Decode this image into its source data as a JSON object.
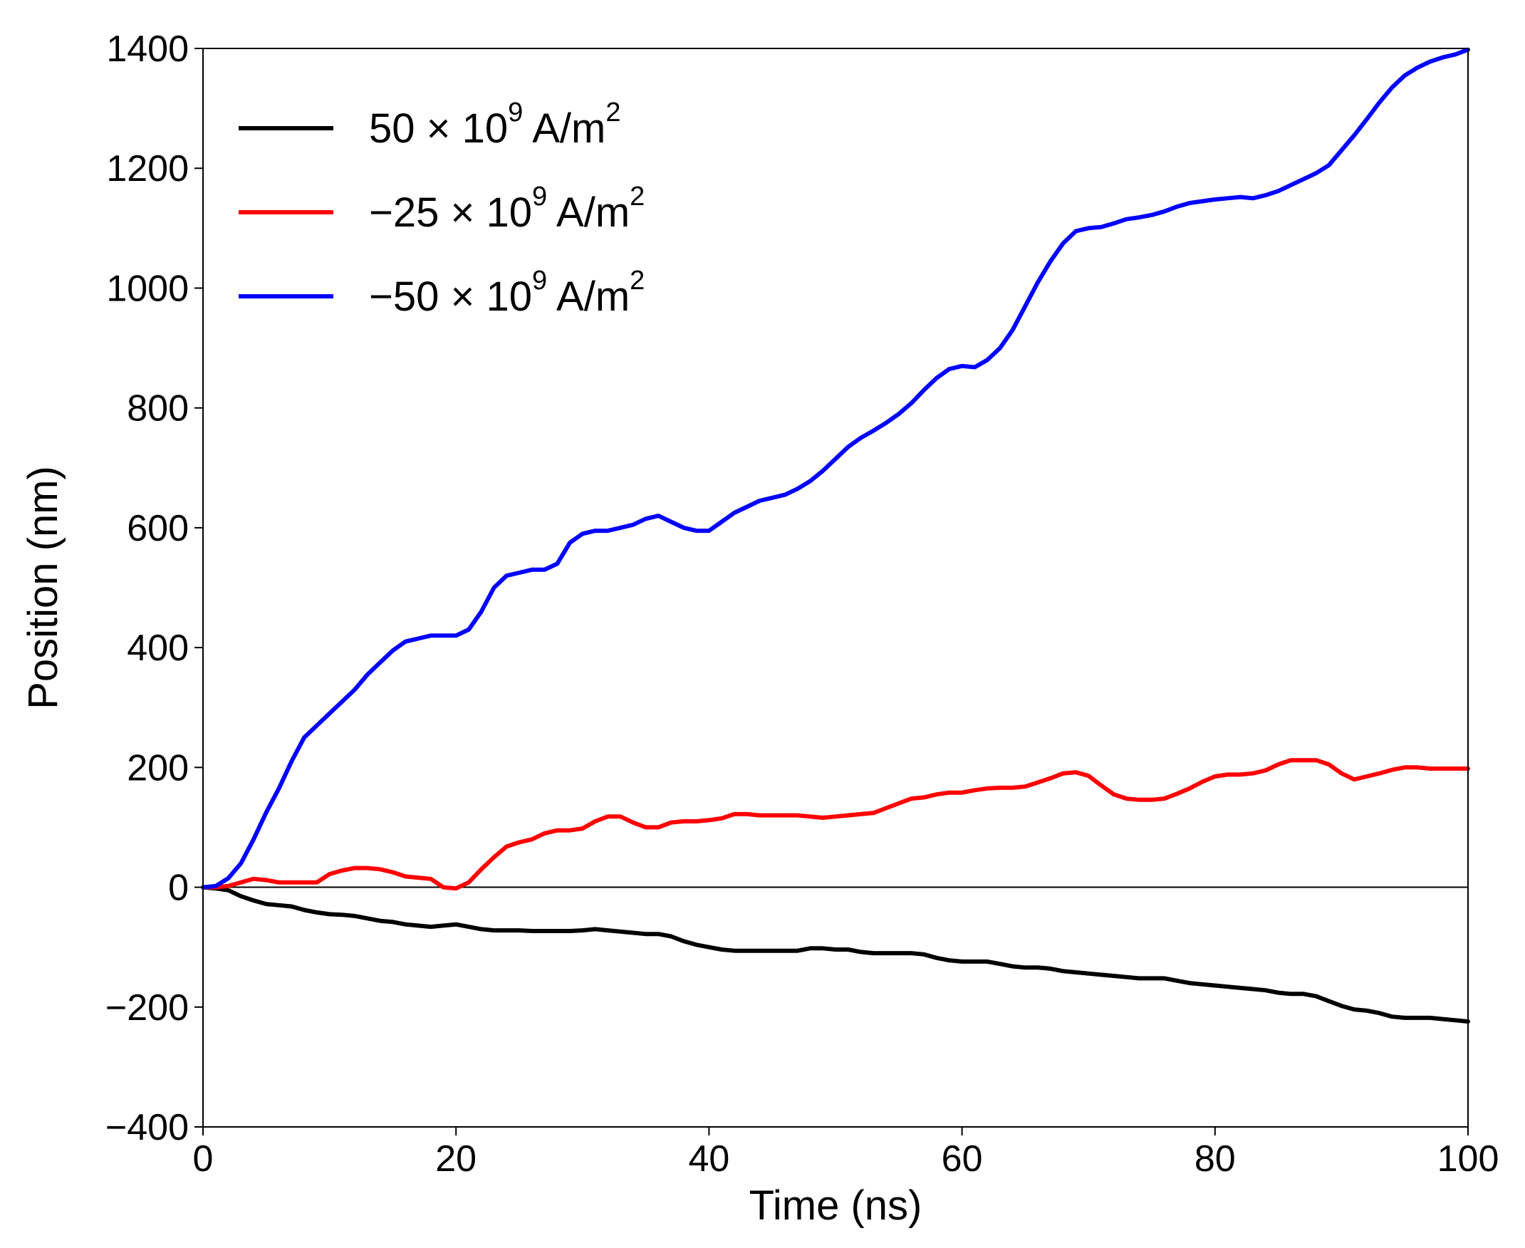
{
  "chart_data": {
    "type": "line",
    "xlabel": "Time (ns)",
    "ylabel": "Position (nm)",
    "xlim": [
      0,
      100
    ],
    "ylim": [
      -400,
      1400
    ],
    "xticks": [
      0,
      20,
      40,
      60,
      80,
      100
    ],
    "yticks": [
      -400,
      -200,
      0,
      200,
      400,
      600,
      800,
      1000,
      1200,
      1400
    ],
    "xtick_labels": [
      "0",
      "20",
      "40",
      "60",
      "80",
      "100"
    ],
    "ytick_labels": [
      "−400",
      "−200",
      "0",
      "200",
      "400",
      "600",
      "800",
      "1000",
      "1200",
      "1400"
    ],
    "grid": false,
    "zero_line": true,
    "legend_position": "top-left",
    "series": [
      {
        "legend": {
          "prefix": "50 × 10",
          "exponent": "9",
          "unit": " A/m",
          "unit_exponent": "2"
        },
        "color": "#000000",
        "x": [
          0,
          1,
          2,
          3,
          4,
          5,
          6,
          7,
          8,
          9,
          10,
          11,
          12,
          13,
          14,
          15,
          16,
          17,
          18,
          19,
          20,
          21,
          22,
          23,
          24,
          25,
          26,
          27,
          28,
          29,
          30,
          31,
          32,
          33,
          34,
          35,
          36,
          37,
          38,
          39,
          40,
          41,
          42,
          43,
          44,
          45,
          46,
          47,
          48,
          49,
          50,
          51,
          52,
          53,
          54,
          55,
          56,
          57,
          58,
          59,
          60,
          61,
          62,
          63,
          64,
          65,
          66,
          67,
          68,
          69,
          70,
          71,
          72,
          73,
          74,
          75,
          76,
          77,
          78,
          79,
          80,
          81,
          82,
          83,
          84,
          85,
          86,
          87,
          88,
          89,
          90,
          91,
          92,
          93,
          94,
          95,
          96,
          97,
          98,
          99,
          100
        ],
        "y": [
          0,
          -2,
          -5,
          -15,
          -22,
          -28,
          -30,
          -32,
          -38,
          -42,
          -45,
          -46,
          -48,
          -52,
          -56,
          -58,
          -62,
          -64,
          -66,
          -64,
          -62,
          -66,
          -70,
          -72,
          -72,
          -72,
          -73,
          -73,
          -73,
          -73,
          -72,
          -70,
          -72,
          -74,
          -76,
          -78,
          -78,
          -82,
          -90,
          -96,
          -100,
          -104,
          -106,
          -106,
          -106,
          -106,
          -106,
          -106,
          -102,
          -102,
          -104,
          -104,
          -108,
          -110,
          -110,
          -110,
          -110,
          -112,
          -118,
          -122,
          -124,
          -124,
          -124,
          -128,
          -132,
          -134,
          -134,
          -136,
          -140,
          -142,
          -144,
          -146,
          -148,
          -150,
          -152,
          -152,
          -152,
          -156,
          -160,
          -162,
          -164,
          -166,
          -168,
          -170,
          -172,
          -176,
          -178,
          -178,
          -182,
          -190,
          -198,
          -204,
          -206,
          -210,
          -216,
          -218,
          -218,
          -218,
          -220,
          -222,
          -224
        ]
      },
      {
        "legend": {
          "prefix": "−25 × 10",
          "exponent": "9",
          "unit": " A/m",
          "unit_exponent": "2"
        },
        "color": "#ff0000",
        "x": [
          0,
          1,
          2,
          3,
          4,
          5,
          6,
          7,
          8,
          9,
          10,
          11,
          12,
          13,
          14,
          15,
          16,
          17,
          18,
          19,
          20,
          21,
          22,
          23,
          24,
          25,
          26,
          27,
          28,
          29,
          30,
          31,
          32,
          33,
          34,
          35,
          36,
          37,
          38,
          39,
          40,
          41,
          42,
          43,
          44,
          45,
          46,
          47,
          48,
          49,
          50,
          51,
          52,
          53,
          54,
          55,
          56,
          57,
          58,
          59,
          60,
          61,
          62,
          63,
          64,
          65,
          66,
          67,
          68,
          69,
          70,
          71,
          72,
          73,
          74,
          75,
          76,
          77,
          78,
          79,
          80,
          81,
          82,
          83,
          84,
          85,
          86,
          87,
          88,
          89,
          90,
          91,
          92,
          93,
          94,
          95,
          96,
          97,
          98,
          99,
          100
        ],
        "y": [
          0,
          0,
          2,
          8,
          14,
          12,
          8,
          8,
          8,
          8,
          22,
          28,
          32,
          32,
          30,
          25,
          18,
          16,
          14,
          0,
          -2,
          8,
          30,
          50,
          68,
          75,
          80,
          90,
          95,
          95,
          98,
          110,
          118,
          118,
          108,
          100,
          100,
          108,
          110,
          110,
          112,
          115,
          122,
          122,
          120,
          120,
          120,
          120,
          118,
          116,
          118,
          120,
          122,
          124,
          132,
          140,
          148,
          150,
          155,
          158,
          158,
          162,
          165,
          166,
          166,
          168,
          175,
          182,
          190,
          192,
          186,
          170,
          155,
          148,
          146,
          146,
          148,
          156,
          165,
          176,
          185,
          188,
          188,
          190,
          195,
          205,
          212,
          212,
          212,
          205,
          190,
          180,
          185,
          190,
          196,
          200,
          200,
          198,
          198,
          198,
          198
        ]
      },
      {
        "legend": {
          "prefix": "−50 × 10",
          "exponent": "9",
          "unit": " A/m",
          "unit_exponent": "2"
        },
        "color": "#0000ff",
        "x": [
          0,
          1,
          2,
          3,
          4,
          5,
          6,
          7,
          8,
          9,
          10,
          11,
          12,
          13,
          14,
          15,
          16,
          17,
          18,
          19,
          20,
          21,
          22,
          23,
          24,
          25,
          26,
          27,
          28,
          29,
          30,
          31,
          32,
          33,
          34,
          35,
          36,
          37,
          38,
          39,
          40,
          41,
          42,
          43,
          44,
          45,
          46,
          47,
          48,
          49,
          50,
          51,
          52,
          53,
          54,
          55,
          56,
          57,
          58,
          59,
          60,
          61,
          62,
          63,
          64,
          65,
          66,
          67,
          68,
          69,
          70,
          71,
          72,
          73,
          74,
          75,
          76,
          77,
          78,
          79,
          80,
          81,
          82,
          83,
          84,
          85,
          86,
          87,
          88,
          89,
          90,
          91,
          92,
          93,
          94,
          95,
          96,
          97,
          98,
          99,
          100
        ],
        "y": [
          0,
          2,
          15,
          40,
          80,
          125,
          165,
          210,
          250,
          270,
          290,
          310,
          330,
          355,
          375,
          395,
          410,
          415,
          420,
          420,
          420,
          430,
          460,
          500,
          520,
          525,
          530,
          530,
          540,
          575,
          590,
          595,
          595,
          600,
          605,
          615,
          620,
          610,
          600,
          595,
          595,
          610,
          625,
          635,
          645,
          650,
          655,
          665,
          678,
          695,
          715,
          735,
          750,
          762,
          775,
          790,
          808,
          830,
          850,
          865,
          870,
          868,
          880,
          900,
          930,
          970,
          1010,
          1045,
          1075,
          1095,
          1100,
          1102,
          1108,
          1115,
          1118,
          1122,
          1128,
          1136,
          1142,
          1145,
          1148,
          1150,
          1152,
          1150,
          1155,
          1162,
          1172,
          1182,
          1192,
          1205,
          1230,
          1255,
          1282,
          1310,
          1335,
          1355,
          1368,
          1378,
          1385,
          1390,
          1398
        ]
      }
    ]
  }
}
